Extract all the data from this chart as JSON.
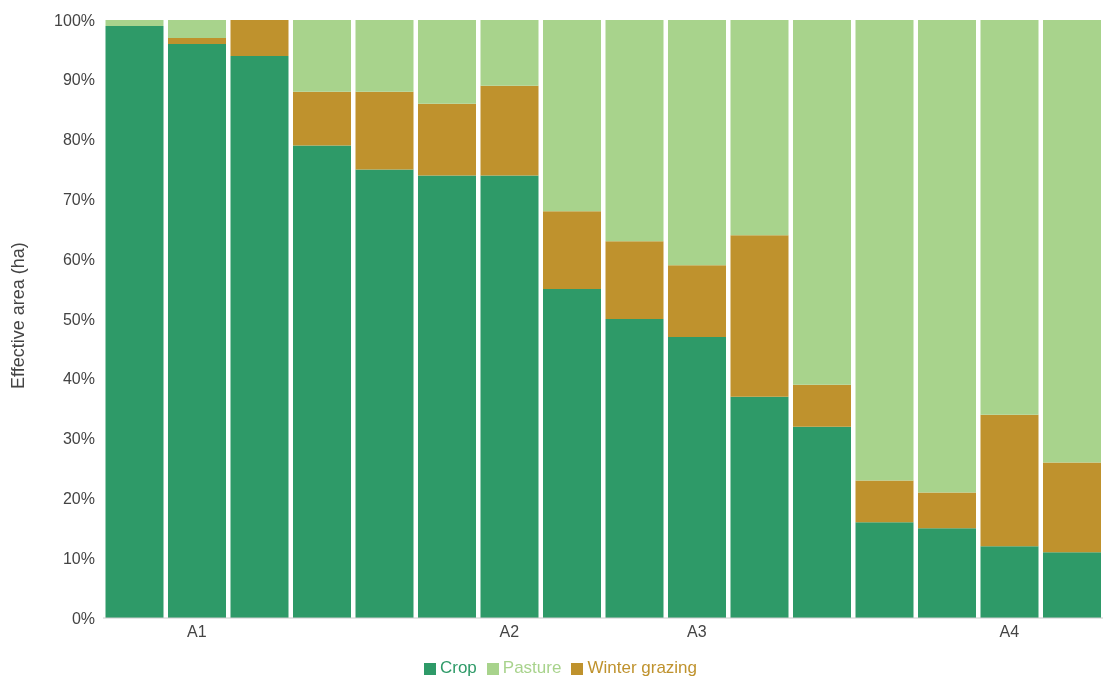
{
  "chart_data": {
    "type": "bar",
    "stacked": true,
    "ylabel": "Effective area (ha)",
    "categories": [
      null,
      "A1",
      null,
      null,
      null,
      null,
      "A2",
      null,
      null,
      "A3",
      null,
      null,
      null,
      null,
      "A4",
      null
    ],
    "series": [
      {
        "name": "Crop",
        "color": "#2e9a68",
        "values": [
          99,
          96,
          94,
          79,
          75,
          74,
          74,
          55,
          50,
          47,
          37,
          32,
          16,
          15,
          12,
          11
        ]
      },
      {
        "name": "Winter grazing",
        "color": "#bf922d",
        "values": [
          0,
          1,
          6,
          9,
          13,
          12,
          15,
          13,
          13,
          12,
          27,
          7,
          7,
          6,
          22,
          15
        ]
      },
      {
        "name": "Pasture",
        "color": "#a8d38c",
        "values": [
          1,
          3,
          0,
          12,
          12,
          14,
          11,
          32,
          37,
          41,
          36,
          61,
          77,
          79,
          66,
          74
        ]
      }
    ],
    "ylim": [
      0,
      100
    ],
    "yticks": [
      {
        "value": 0,
        "label": "0%"
      },
      {
        "value": 10,
        "label": "10%"
      },
      {
        "value": 20,
        "label": "20%"
      },
      {
        "value": 30,
        "label": "30%"
      },
      {
        "value": 40,
        "label": "40%"
      },
      {
        "value": 50,
        "label": "50%"
      },
      {
        "value": 60,
        "label": "60%"
      },
      {
        "value": 70,
        "label": "70%"
      },
      {
        "value": 80,
        "label": "80%"
      },
      {
        "value": 90,
        "label": "90%"
      },
      {
        "value": 100,
        "label": "100%"
      }
    ],
    "grid": false,
    "legend": "bottom"
  }
}
